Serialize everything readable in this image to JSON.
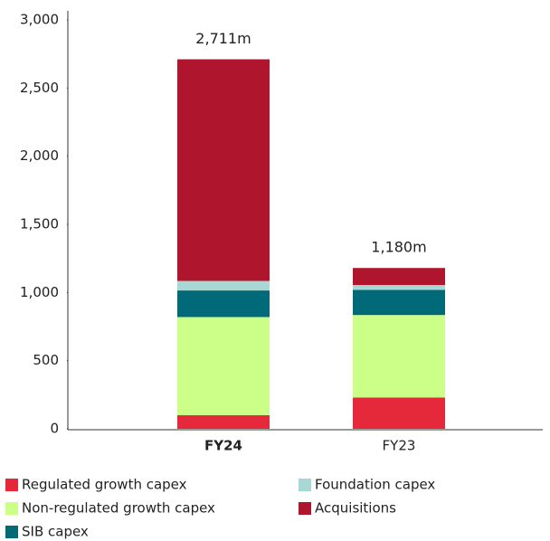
{
  "chart_data": {
    "type": "stacked_bar",
    "categories": [
      "FY24",
      "FY23"
    ],
    "series": [
      {
        "name": "Regulated growth capex",
        "color": "#e5283a",
        "values": [
          100,
          230
        ]
      },
      {
        "name": "Non-regulated growth capex",
        "color": "#ccff88",
        "values": [
          720,
          605
        ]
      },
      {
        "name": "SIB capex",
        "color": "#006a78",
        "values": [
          195,
          185
        ]
      },
      {
        "name": "Foundation capex",
        "color": "#a8d8d4",
        "values": [
          70,
          35
        ]
      },
      {
        "name": "Acquisitions",
        "color": "#b0152e",
        "values": [
          1626,
          125
        ]
      }
    ],
    "annotations": [
      "2,711m",
      "1,180m"
    ],
    "ylim": [
      0,
      3000
    ],
    "yticks": [
      0,
      {
        "value": 500,
        "label": "500"
      },
      {
        "value": 1000,
        "label": "1,000"
      },
      {
        "value": 1500,
        "label": "1,500"
      },
      {
        "value": 2000,
        "label": "2,000"
      },
      {
        "value": 2500,
        "label": "2,500"
      },
      {
        "value": 3000,
        "label": "3,000"
      }
    ]
  }
}
